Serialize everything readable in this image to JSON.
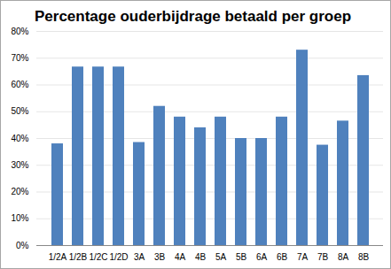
{
  "chart_data": {
    "type": "bar",
    "title": "Percentage ouderbijdrage betaald per groep",
    "categories": [
      "1/2A",
      "1/2B",
      "1/2C",
      "1/2D",
      "3A",
      "3B",
      "4A",
      "4B",
      "5A",
      "5B",
      "6A",
      "6B",
      "7A",
      "7B",
      "8A",
      "8B"
    ],
    "values": [
      38,
      66.7,
      66.7,
      66.7,
      38.5,
      52,
      48,
      44,
      48,
      40,
      40,
      48,
      73,
      37.5,
      46.5,
      63.5
    ],
    "color": "#4f81bd",
    "ylim": [
      0,
      80
    ],
    "yticks": [
      {
        "value": 0,
        "label": "0%"
      },
      {
        "value": 10,
        "label": "10%"
      },
      {
        "value": 20,
        "label": "20%"
      },
      {
        "value": 30,
        "label": "30%"
      },
      {
        "value": 40,
        "label": "40%"
      },
      {
        "value": 50,
        "label": "50%"
      },
      {
        "value": 60,
        "label": "60%"
      },
      {
        "value": 70,
        "label": "70%"
      },
      {
        "value": 80,
        "label": "80%"
      }
    ],
    "grid": true
  }
}
